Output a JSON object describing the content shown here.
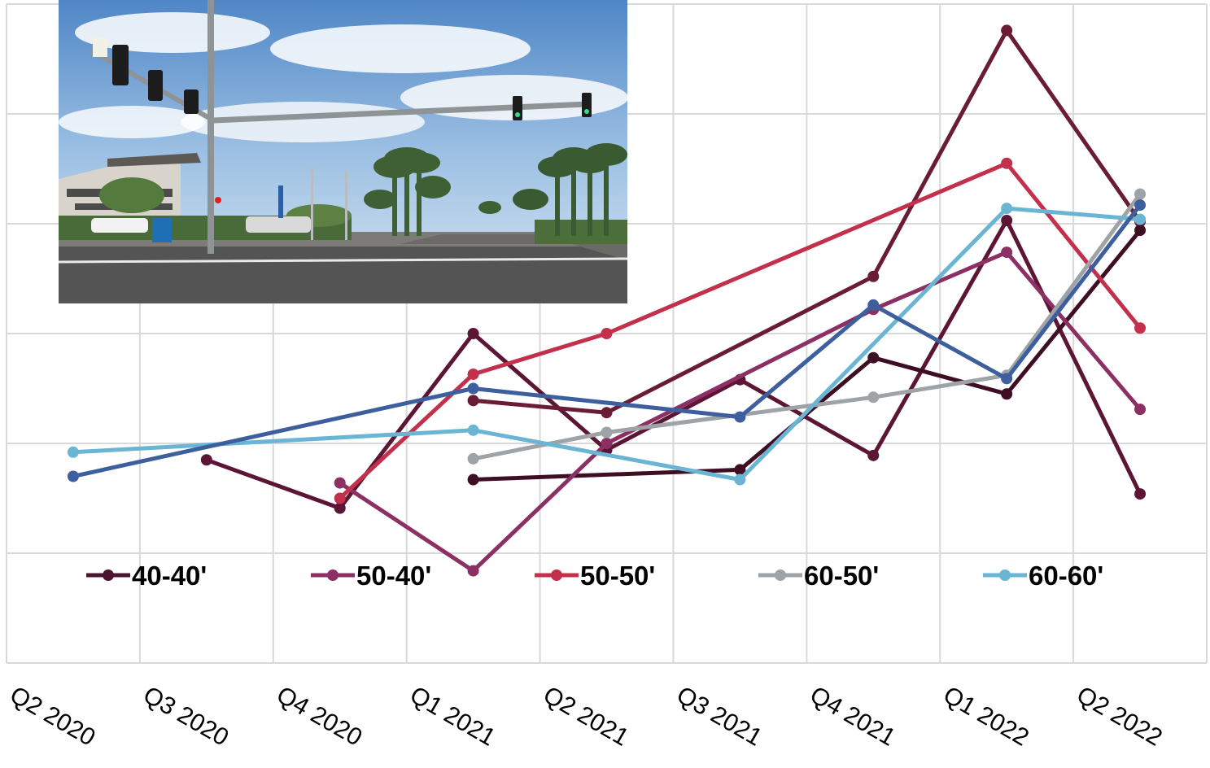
{
  "chart_data": {
    "type": "line",
    "title": "",
    "xlabel": "",
    "ylabel": "",
    "categories": [
      "Q2 2020",
      "Q3 2020",
      "Q4 2020",
      "Q1 2021",
      "Q2 2021",
      "Q3 2021",
      "Q4 2021",
      "Q1 2022",
      "Q2 2022"
    ],
    "ylim": [
      0,
      6
    ],
    "y_ticks_labeled": false,
    "grid": true,
    "legend_position": "bottom-inside",
    "legend": [
      {
        "label": "40-40'",
        "color": "#4a1530"
      },
      {
        "label": "50-40'",
        "color": "#8c2f62"
      },
      {
        "label": "50-50'",
        "color": "#c3304b"
      },
      {
        "label": "60-50'",
        "color": "#9ea3a8"
      },
      {
        "label": "60-60'",
        "color": "#6ab4d4"
      }
    ],
    "series": [
      {
        "color": "#5c1535",
        "values": [
          null,
          1.85,
          1.41,
          3.0,
          1.94,
          2.58,
          1.89,
          4.03,
          1.54
        ]
      },
      {
        "color": "#6a1c34",
        "values": [
          null,
          null,
          null,
          2.39,
          2.28,
          null,
          3.52,
          5.76,
          4.02
        ]
      },
      {
        "color": "#3e0f24",
        "values": [
          null,
          null,
          null,
          1.67,
          null,
          1.76,
          2.78,
          2.45,
          3.94
        ]
      },
      {
        "color": "#8c2f62",
        "values": [
          null,
          null,
          1.64,
          0.84,
          2.0,
          null,
          3.22,
          3.74,
          2.31
        ]
      },
      {
        "color": "#c3304b",
        "values": [
          null,
          null,
          1.5,
          2.63,
          3.0,
          null,
          null,
          4.55,
          3.05
        ]
      },
      {
        "color": "#9ea3a8",
        "values": [
          null,
          null,
          null,
          1.86,
          2.1,
          null,
          2.42,
          2.62,
          4.27
        ]
      },
      {
        "color": "#6ab4d4",
        "values": [
          1.92,
          null,
          null,
          2.12,
          null,
          1.67,
          null,
          4.14,
          4.04
        ]
      },
      {
        "color": "#3e5f9e",
        "values": [
          1.7,
          null,
          null,
          2.5,
          null,
          2.24,
          3.26,
          2.59,
          4.17
        ]
      }
    ]
  },
  "photo": {
    "description_icon": "beach-intersection-photo-icon"
  }
}
